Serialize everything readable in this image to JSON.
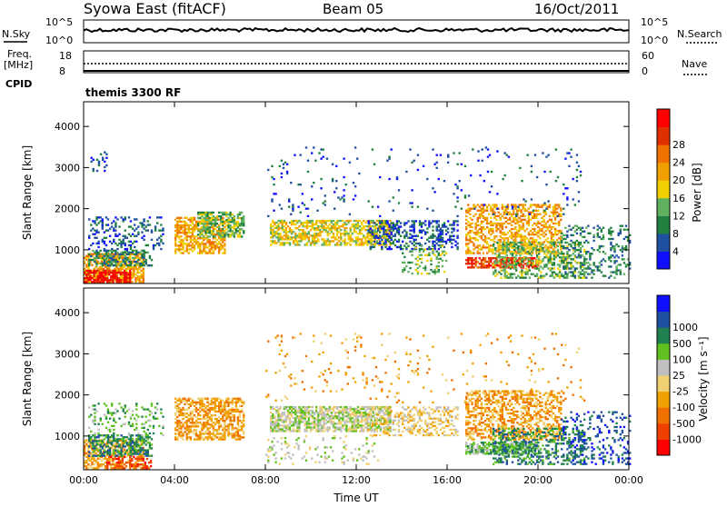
{
  "header": {
    "station": "Syowa East (fitACF)",
    "beam": "Beam 05",
    "date": "16/Oct/2011"
  },
  "top_panels": {
    "nsky_label": "N.Sky",
    "nsky_ticks": [
      "10^5",
      "10^0"
    ],
    "nsearch_label": "N.Search",
    "nsearch_ticks": [
      "10^5",
      "10^0"
    ],
    "freq_label_1": "Freq.",
    "freq_label_2": "[MHz]",
    "freq_ticks": [
      "18",
      "8"
    ],
    "nave_label": "Nave",
    "nave_ticks": [
      "60",
      "0"
    ],
    "cpid_label": "CPID",
    "cpid_value": "themis 3300 RF"
  },
  "chart_data": [
    {
      "type": "heatmap",
      "name": "power",
      "ylabel": "Slant Range [km]",
      "xlabel": "",
      "x_ticks": [
        "00:00",
        "04:00",
        "08:00",
        "12:00",
        "16:00",
        "20:00",
        "00:00"
      ],
      "x_tick_hours": [
        0,
        4,
        8,
        12,
        16,
        20,
        24
      ],
      "xlim": [
        0,
        24
      ],
      "y_ticks": [
        1000,
        2000,
        3000,
        4000
      ],
      "ylim": [
        180,
        4600
      ],
      "colorbar_label": "Power [dB]",
      "colorbar_ticks": [
        "4",
        "8",
        "12",
        "16",
        "20",
        "24",
        "28"
      ],
      "colorbar_colors": [
        "#1010ff",
        "#2050a0",
        "#208040",
        "#60b060",
        "#f0d000",
        "#f0a000",
        "#f07000",
        "#e03000",
        "#ff0000"
      ],
      "regions": [
        {
          "t0": 0.0,
          "t1": 2.6,
          "r0": 200,
          "r1": 900,
          "color_idx": 5,
          "density": 0.7
        },
        {
          "t0": 0.0,
          "t1": 2.0,
          "r0": 200,
          "r1": 500,
          "color_idx": 8,
          "density": 0.7
        },
        {
          "t0": 0.2,
          "t1": 3.0,
          "r0": 600,
          "r1": 1000,
          "color_idx": 2,
          "density": 0.5
        },
        {
          "t0": 0.2,
          "t1": 3.5,
          "r0": 1000,
          "r1": 1800,
          "color_idx": 1,
          "density": 0.25
        },
        {
          "t0": 0.3,
          "t1": 1.0,
          "r0": 2900,
          "r1": 3400,
          "color_idx": 1,
          "density": 0.2
        },
        {
          "t0": 4.0,
          "t1": 6.2,
          "r0": 900,
          "r1": 1800,
          "color_idx": 5,
          "density": 0.6
        },
        {
          "t0": 5.0,
          "t1": 7.0,
          "r0": 1300,
          "r1": 1900,
          "color_idx": 3,
          "density": 0.6
        },
        {
          "t0": 8.2,
          "t1": 13.5,
          "r0": 1100,
          "r1": 1700,
          "color_idx": 4,
          "density": 0.6
        },
        {
          "t0": 12.5,
          "t1": 16.5,
          "r0": 1000,
          "r1": 1700,
          "color_idx": 1,
          "density": 0.35
        },
        {
          "t0": 14.0,
          "t1": 16.0,
          "r0": 400,
          "r1": 1100,
          "color_idx": 3,
          "density": 0.25
        },
        {
          "t0": 16.8,
          "t1": 21.0,
          "r0": 900,
          "r1": 2100,
          "color_idx": 5,
          "density": 0.5
        },
        {
          "t0": 16.8,
          "t1": 20.0,
          "r0": 550,
          "r1": 800,
          "color_idx": 7,
          "density": 0.7
        },
        {
          "t0": 18.0,
          "t1": 22.0,
          "r0": 300,
          "r1": 1200,
          "color_idx": 3,
          "density": 0.4
        },
        {
          "t0": 21.0,
          "t1": 24.0,
          "r0": 300,
          "r1": 1600,
          "color_idx": 2,
          "density": 0.25
        },
        {
          "t0": 8.0,
          "t1": 22.0,
          "r0": 1800,
          "r1": 3500,
          "color_idx": 1,
          "density": 0.035
        }
      ]
    },
    {
      "type": "heatmap",
      "name": "velocity",
      "ylabel": "Slant Range [km]",
      "xlabel": "Time UT",
      "x_ticks": [
        "00:00",
        "04:00",
        "08:00",
        "12:00",
        "16:00",
        "20:00",
        "00:00"
      ],
      "x_tick_hours": [
        0,
        4,
        8,
        12,
        16,
        20,
        24
      ],
      "xlim": [
        0,
        24
      ],
      "y_ticks": [
        1000,
        2000,
        3000,
        4000
      ],
      "ylim": [
        180,
        4600
      ],
      "colorbar_label": "Velocity [m s⁻¹]",
      "colorbar_ticks": [
        "-1000",
        "-500",
        "-100",
        "-25",
        "25",
        "100",
        "500",
        "1000"
      ],
      "colorbar_colors": [
        "#ff0000",
        "#f04000",
        "#f07000",
        "#f0a000",
        "#f0d070",
        "#c0c0c0",
        "#60c020",
        "#208050",
        "#2050a0",
        "#1010ff"
      ],
      "regions": [
        {
          "t0": 0.0,
          "t1": 2.6,
          "r0": 200,
          "r1": 900,
          "color_idx": 3,
          "density": 0.6
        },
        {
          "t0": 0.2,
          "t1": 3.0,
          "r0": 500,
          "r1": 1000,
          "color_idx": 7,
          "density": 0.5
        },
        {
          "t0": 0.2,
          "t1": 3.5,
          "r0": 1000,
          "r1": 1800,
          "color_idx": 6,
          "density": 0.2
        },
        {
          "t0": 1.0,
          "t1": 3.0,
          "r0": 200,
          "r1": 500,
          "color_idx": 1,
          "density": 0.4
        },
        {
          "t0": 4.0,
          "t1": 7.0,
          "r0": 900,
          "r1": 1900,
          "color_idx": 3,
          "density": 0.6
        },
        {
          "t0": 8.2,
          "t1": 13.5,
          "r0": 1100,
          "r1": 1700,
          "color_idx": 5,
          "density": 0.7
        },
        {
          "t0": 8.0,
          "t1": 13.0,
          "r0": 300,
          "r1": 1000,
          "color_idx": 5,
          "density": 0.12
        },
        {
          "t0": 12.5,
          "t1": 16.5,
          "r0": 1000,
          "r1": 1700,
          "color_idx": 4,
          "density": 0.35
        },
        {
          "t0": 16.8,
          "t1": 21.0,
          "r0": 900,
          "r1": 2100,
          "color_idx": 3,
          "density": 0.5
        },
        {
          "t0": 16.8,
          "t1": 20.0,
          "r0": 550,
          "r1": 850,
          "color_idx": 6,
          "density": 0.7
        },
        {
          "t0": 18.0,
          "t1": 22.0,
          "r0": 300,
          "r1": 1200,
          "color_idx": 7,
          "density": 0.35
        },
        {
          "t0": 21.0,
          "t1": 24.0,
          "r0": 300,
          "r1": 1600,
          "color_idx": 8,
          "density": 0.2
        },
        {
          "t0": 8.0,
          "t1": 22.0,
          "r0": 1800,
          "r1": 3500,
          "color_idx": 3,
          "density": 0.035
        }
      ]
    }
  ]
}
